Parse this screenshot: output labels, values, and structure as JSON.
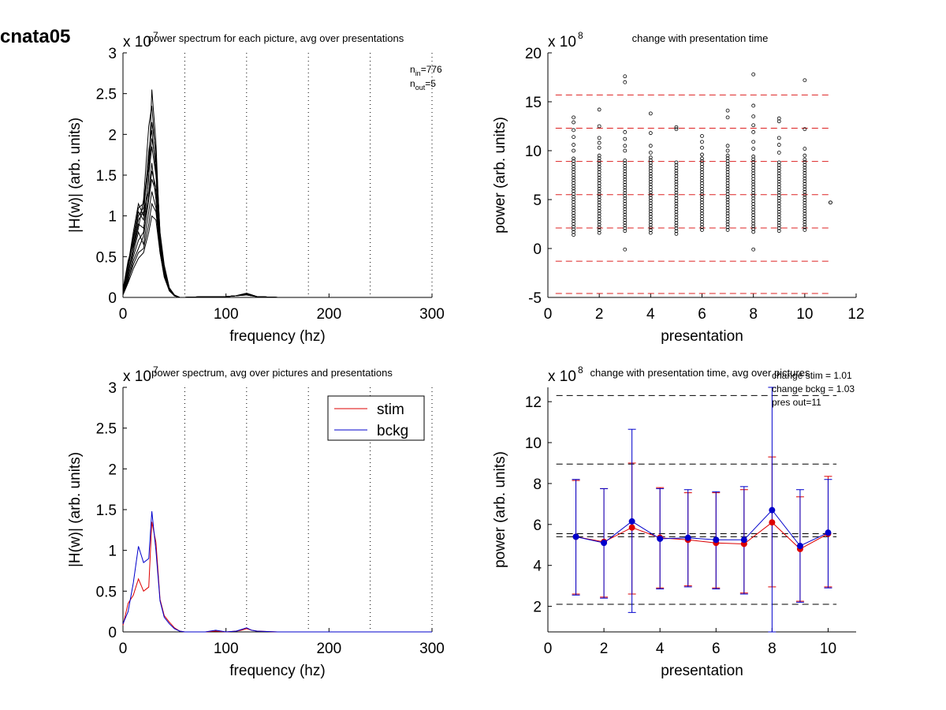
{
  "figure": {
    "title": "cnata05"
  },
  "chart_data": [
    {
      "id": "p1",
      "type": "line",
      "title": "power spectrum for each picture, avg over presentations",
      "xlabel": "frequency (hz)",
      "ylabel": "|H(w)| (arb. units)",
      "y_exponent_label": "x 10",
      "y_exponent": "7",
      "xlim": [
        0,
        300
      ],
      "ylim": [
        0,
        3
      ],
      "xticks": [
        "0",
        "100",
        "200",
        "300"
      ],
      "yticks": [
        "0",
        "0.5",
        "1",
        "1.5",
        "2",
        "2.5",
        "3"
      ],
      "vlines": [
        60,
        120,
        180,
        240,
        300
      ],
      "annotation": {
        "n_in_label": "n",
        "n_in_sub": "in",
        "n_in_value": "=776",
        "n_out_label": "n",
        "n_out_sub": "out",
        "n_out_value": "=5"
      },
      "series_color": "#000000",
      "x": [
        0,
        5,
        10,
        15,
        20,
        25,
        28,
        32,
        36,
        40,
        45,
        50,
        55,
        60,
        80,
        100,
        110,
        120,
        130,
        150,
        180,
        200,
        300
      ],
      "series": [
        {
          "values": [
            0.05,
            0.35,
            0.75,
            1.05,
            0.95,
            1.45,
            2.55,
            1.9,
            0.7,
            0.35,
            0.1,
            0.02,
            0,
            0,
            0.01,
            0.01,
            0.02,
            0.05,
            0.01,
            0,
            0,
            0,
            0
          ]
        },
        {
          "values": [
            0.05,
            0.3,
            0.6,
            0.85,
            1.2,
            2.1,
            2.35,
            1.7,
            0.8,
            0.4,
            0.12,
            0.03,
            0,
            0,
            0.01,
            0.01,
            0.02,
            0.04,
            0.01,
            0,
            0,
            0,
            0
          ]
        },
        {
          "values": [
            0.08,
            0.4,
            0.8,
            1.15,
            1.0,
            1.8,
            2.05,
            1.55,
            0.65,
            0.3,
            0.1,
            0.02,
            0,
            0,
            0.01,
            0.01,
            0.02,
            0.04,
            0.01,
            0,
            0,
            0,
            0
          ]
        },
        {
          "values": [
            0.05,
            0.25,
            0.5,
            0.7,
            0.8,
            1.5,
            1.85,
            1.5,
            0.75,
            0.35,
            0.11,
            0.03,
            0,
            0,
            0.01,
            0.01,
            0.02,
            0.05,
            0.01,
            0,
            0,
            0,
            0
          ]
        },
        {
          "values": [
            0.1,
            0.45,
            0.65,
            0.95,
            1.05,
            1.3,
            1.65,
            1.2,
            0.6,
            0.28,
            0.09,
            0.02,
            0,
            0,
            0.01,
            0.01,
            0.02,
            0.03,
            0.01,
            0,
            0,
            0,
            0
          ]
        },
        {
          "values": [
            0.05,
            0.2,
            0.45,
            0.6,
            0.75,
            1.2,
            1.45,
            1.3,
            0.7,
            0.32,
            0.1,
            0.02,
            0,
            0,
            0.01,
            0.01,
            0.02,
            0.04,
            0.01,
            0,
            0,
            0,
            0
          ]
        },
        {
          "values": [
            0.06,
            0.3,
            0.55,
            0.8,
            0.65,
            1.05,
            1.3,
            1.1,
            0.55,
            0.25,
            0.08,
            0.02,
            0,
            0,
            0.01,
            0.01,
            0.02,
            0.03,
            0.01,
            0,
            0,
            0,
            0
          ]
        },
        {
          "values": [
            0.04,
            0.22,
            0.4,
            0.55,
            0.6,
            0.9,
            1.15,
            1.05,
            0.6,
            0.3,
            0.09,
            0.02,
            0,
            0,
            0.01,
            0.01,
            0.02,
            0.04,
            0.01,
            0,
            0,
            0,
            0
          ]
        },
        {
          "values": [
            0.07,
            0.35,
            0.7,
            1.0,
            1.1,
            1.6,
            1.95,
            1.65,
            0.72,
            0.33,
            0.1,
            0.02,
            0,
            0,
            0.01,
            0.01,
            0.02,
            0.05,
            0.01,
            0,
            0,
            0,
            0
          ]
        },
        {
          "values": [
            0.03,
            0.18,
            0.35,
            0.48,
            0.55,
            0.8,
            1.0,
            0.95,
            0.55,
            0.26,
            0.08,
            0.02,
            0,
            0,
            0.01,
            0.01,
            0.02,
            0.03,
            0.01,
            0,
            0,
            0,
            0
          ]
        },
        {
          "values": [
            0.06,
            0.28,
            0.62,
            0.9,
            0.85,
            1.25,
            1.55,
            1.35,
            0.68,
            0.31,
            0.1,
            0.02,
            0,
            0,
            0.01,
            0.01,
            0.02,
            0.04,
            0.01,
            0,
            0,
            0,
            0
          ]
        },
        {
          "values": [
            0.09,
            0.42,
            0.72,
            1.1,
            1.15,
            1.7,
            2.15,
            1.8,
            0.78,
            0.36,
            0.11,
            0.03,
            0,
            0,
            0.01,
            0.01,
            0.02,
            0.05,
            0.01,
            0,
            0,
            0,
            0
          ]
        }
      ]
    },
    {
      "id": "p2",
      "type": "scatter",
      "title": "change with presentation time",
      "xlabel": "presentation",
      "ylabel": "power (arb. units)",
      "y_exponent_label": "x 10",
      "y_exponent": "8",
      "xlim": [
        0,
        12
      ],
      "ylim": [
        -5,
        20
      ],
      "xticks": [
        "0",
        "2",
        "4",
        "6",
        "8",
        "10",
        "12"
      ],
      "yticks": [
        "-5",
        "0",
        "5",
        "10",
        "15",
        "20"
      ],
      "hlines": [
        -4.6,
        -1.3,
        2.1,
        5.5,
        8.9,
        12.3,
        15.7
      ],
      "hline_color": "#dd2222",
      "point_color": "#000000",
      "columns": [
        {
          "x": 1,
          "ymin": 1.4,
          "ymax": 9.2,
          "outliers": [
            10.0,
            10.6,
            11.4,
            12.1,
            12.9,
            13.4
          ]
        },
        {
          "x": 2,
          "ymin": 1.6,
          "ymax": 9.5,
          "outliers": [
            10.3,
            10.8,
            11.3,
            12.5,
            14.2
          ]
        },
        {
          "x": 3,
          "ymin": 1.8,
          "ymax": 9.0,
          "outliers": [
            -0.1,
            10.0,
            10.5,
            11.2,
            11.9,
            17.0,
            17.6
          ]
        },
        {
          "x": 4,
          "ymin": 1.6,
          "ymax": 9.3,
          "outliers": [
            9.8,
            10.5,
            11.8,
            13.8
          ]
        },
        {
          "x": 5,
          "ymin": 1.5,
          "ymax": 8.8,
          "outliers": [
            12.2,
            12.4
          ]
        },
        {
          "x": 6,
          "ymin": 1.9,
          "ymax": 9.2,
          "outliers": [
            9.6,
            10.3,
            10.9,
            11.5
          ]
        },
        {
          "x": 7,
          "ymin": 1.9,
          "ymax": 9.5,
          "outliers": [
            10.0,
            10.5,
            13.4,
            14.1
          ]
        },
        {
          "x": 8,
          "ymin": 1.7,
          "ymax": 9.4,
          "outliers": [
            -0.1,
            10.2,
            10.9,
            11.9,
            12.6,
            13.5,
            14.6,
            17.8
          ]
        },
        {
          "x": 9,
          "ymin": 1.8,
          "ymax": 8.8,
          "outliers": [
            9.8,
            10.6,
            11.3,
            13.0,
            13.3
          ]
        },
        {
          "x": 10,
          "ymin": 1.9,
          "ymax": 9.1,
          "outliers": [
            9.5,
            10.2,
            12.2,
            17.2
          ]
        },
        {
          "x": 11,
          "ymin": 4.7,
          "ymax": 4.7,
          "outliers": []
        }
      ]
    },
    {
      "id": "p3",
      "type": "line",
      "title": "power spectrum, avg over pictures and presentations",
      "xlabel": "frequency (hz)",
      "ylabel": "|H(w)| (arb. units)",
      "y_exponent_label": "x 10",
      "y_exponent": "7",
      "xlim": [
        0,
        300
      ],
      "ylim": [
        0,
        3
      ],
      "xticks": [
        "0",
        "100",
        "200",
        "300"
      ],
      "yticks": [
        "0",
        "0.5",
        "1",
        "1.5",
        "2",
        "2.5",
        "3"
      ],
      "vlines": [
        60,
        120,
        180,
        240,
        300
      ],
      "legend": "top-right",
      "x": [
        0,
        5,
        10,
        15,
        20,
        25,
        28,
        32,
        36,
        40,
        45,
        50,
        55,
        60,
        70,
        80,
        90,
        100,
        110,
        115,
        120,
        125,
        130,
        150,
        200,
        250,
        300
      ],
      "series": [
        {
          "name": "stim",
          "color": "#dd0000",
          "values": [
            0.08,
            0.35,
            0.45,
            0.65,
            0.5,
            0.55,
            1.35,
            1.1,
            0.4,
            0.2,
            0.12,
            0.05,
            0.01,
            0,
            0,
            0,
            0.01,
            0,
            0.01,
            0.02,
            0.04,
            0.02,
            0.01,
            0,
            0,
            0,
            0
          ]
        },
        {
          "name": "bckg",
          "color": "#0000cc",
          "values": [
            0.1,
            0.25,
            0.6,
            1.05,
            0.85,
            0.9,
            1.48,
            1.0,
            0.38,
            0.18,
            0.1,
            0.04,
            0.01,
            0,
            0,
            0,
            0.02,
            0,
            0.01,
            0.03,
            0.05,
            0.02,
            0.01,
            0,
            0,
            0,
            0
          ]
        }
      ]
    },
    {
      "id": "p4",
      "type": "line",
      "title": "change with presentation time, avg over pictures",
      "xlabel": "presentation",
      "ylabel": "power (arb. units)",
      "y_exponent_label": "x 10",
      "y_exponent": "8",
      "xlim": [
        0,
        11
      ],
      "ylim": [
        0.75,
        12.7
      ],
      "xticks": [
        "0",
        "2",
        "4",
        "6",
        "8",
        "10"
      ],
      "yticks": [
        "2",
        "4",
        "6",
        "8",
        "10",
        "12"
      ],
      "hlines": [
        2.1,
        8.95,
        12.3
      ],
      "mean_hlines": [
        5.4,
        5.55
      ],
      "hline_color": "#000000",
      "annotations": [
        "change stim = 1.01",
        "change bckg = 1.03",
        "pres out=11"
      ],
      "x": [
        1,
        2,
        3,
        4,
        5,
        6,
        7,
        8,
        9,
        10
      ],
      "series": [
        {
          "name": "stim",
          "color": "#dd0000",
          "values": [
            5.4,
            5.15,
            5.85,
            5.35,
            5.25,
            5.1,
            5.05,
            6.1,
            4.8,
            5.55
          ],
          "err_low": [
            2.6,
            2.45,
            2.6,
            2.9,
            3.0,
            2.9,
            2.65,
            2.95,
            2.25,
            2.95
          ],
          "err_high": [
            8.15,
            7.75,
            9.0,
            7.8,
            7.55,
            7.55,
            7.7,
            9.3,
            7.35,
            8.35
          ]
        },
        {
          "name": "bckg",
          "color": "#0000cc",
          "values": [
            5.4,
            5.1,
            6.15,
            5.3,
            5.35,
            5.25,
            5.25,
            6.7,
            4.95,
            5.6
          ],
          "err_low": [
            2.55,
            2.4,
            1.7,
            2.85,
            2.95,
            2.85,
            2.6,
            0.75,
            2.2,
            2.9
          ],
          "err_high": [
            8.2,
            7.75,
            10.65,
            7.75,
            7.7,
            7.6,
            7.85,
            12.7,
            7.7,
            8.2
          ]
        }
      ]
    }
  ]
}
